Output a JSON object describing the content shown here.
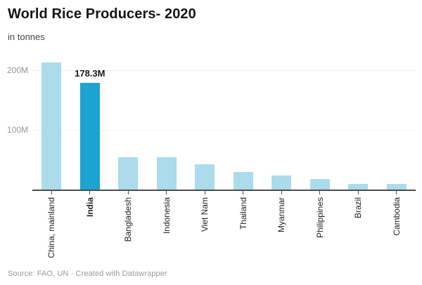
{
  "header": {
    "title": "World Rice Producers- 2020",
    "subtitle": "in tonnes"
  },
  "footer": {
    "text": "Source: FAO, UN · Created with Datawrapper"
  },
  "colors": {
    "bar_default": "#abdbec",
    "bar_highlight": "#1ca3cf",
    "grid": "#eeeeee",
    "axis": "#4d4d4d",
    "y_label": "#949494",
    "x_label": "#222222",
    "value_label": "#1a1a1a"
  },
  "chart_data": {
    "type": "bar",
    "title": "World Rice Producers- 2020",
    "subtitle": "in tonnes",
    "ylabel": "tonnes",
    "xlabel": "",
    "categories": [
      "China, mainland",
      "India",
      "Bangladesh",
      "Indonesia",
      "Viet Nam",
      "Thailand",
      "Myanmar",
      "Philippines",
      "Brazil",
      "Cambodia"
    ],
    "values": [
      211.9,
      178.3,
      54.9,
      54.6,
      42.8,
      30.2,
      25.1,
      19.3,
      11.1,
      11.0
    ],
    "values_unit": "M tonnes",
    "highlight_category": "India",
    "value_labels": [
      {
        "category": "India",
        "text": "178.3M"
      }
    ],
    "yticks": [
      {
        "value": 100,
        "label": "100M"
      },
      {
        "value": 200,
        "label": "200M"
      }
    ],
    "ylim": [
      0,
      235
    ],
    "grid": "horizontal-only",
    "legend": "none",
    "bar_orientation": "vertical",
    "x_label_rotation": -90,
    "source": "FAO, UN"
  }
}
